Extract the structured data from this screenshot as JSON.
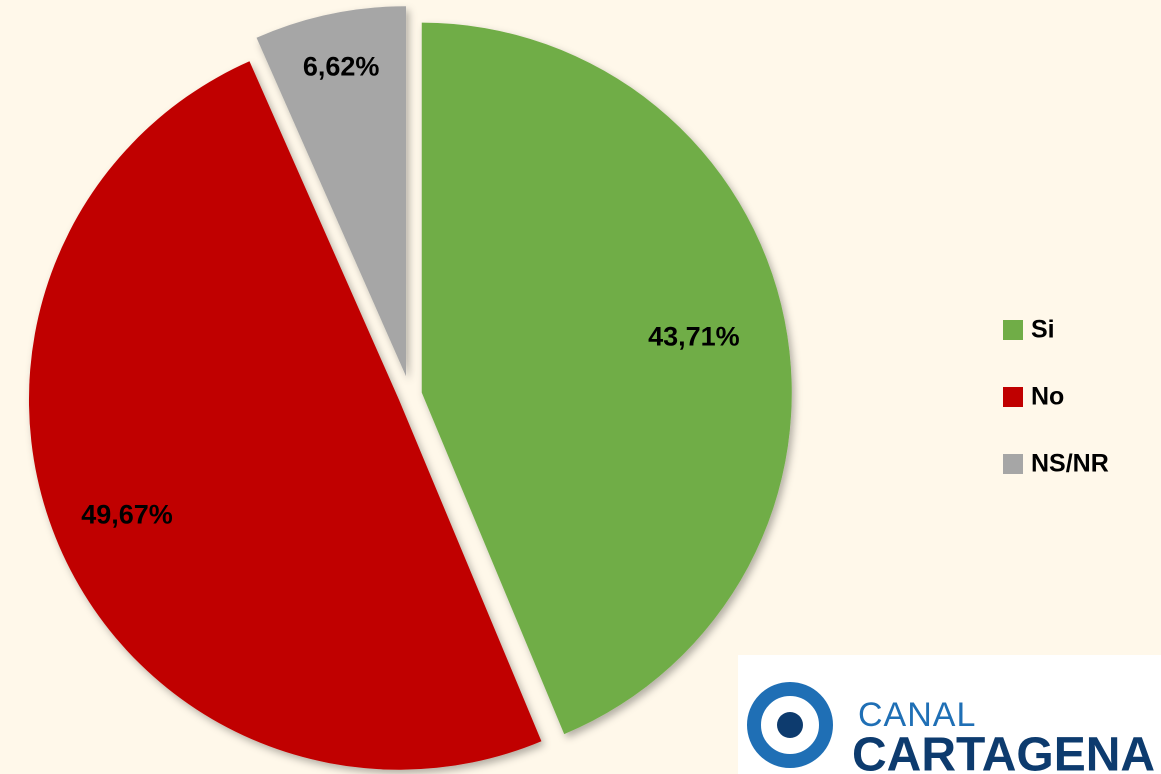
{
  "chart_data": {
    "type": "pie",
    "categories": [
      "Si",
      "No",
      "NS/NR"
    ],
    "values": [
      43.71,
      49.67,
      6.62
    ],
    "value_labels": [
      "43,71%",
      "49,67%",
      "6,62%"
    ],
    "colors": [
      "#70ad47",
      "#c00000",
      "#a6a6a6"
    ],
    "legend": "right"
  },
  "logo": {
    "line1": "CANAL",
    "line2": "CARTAGENA"
  }
}
